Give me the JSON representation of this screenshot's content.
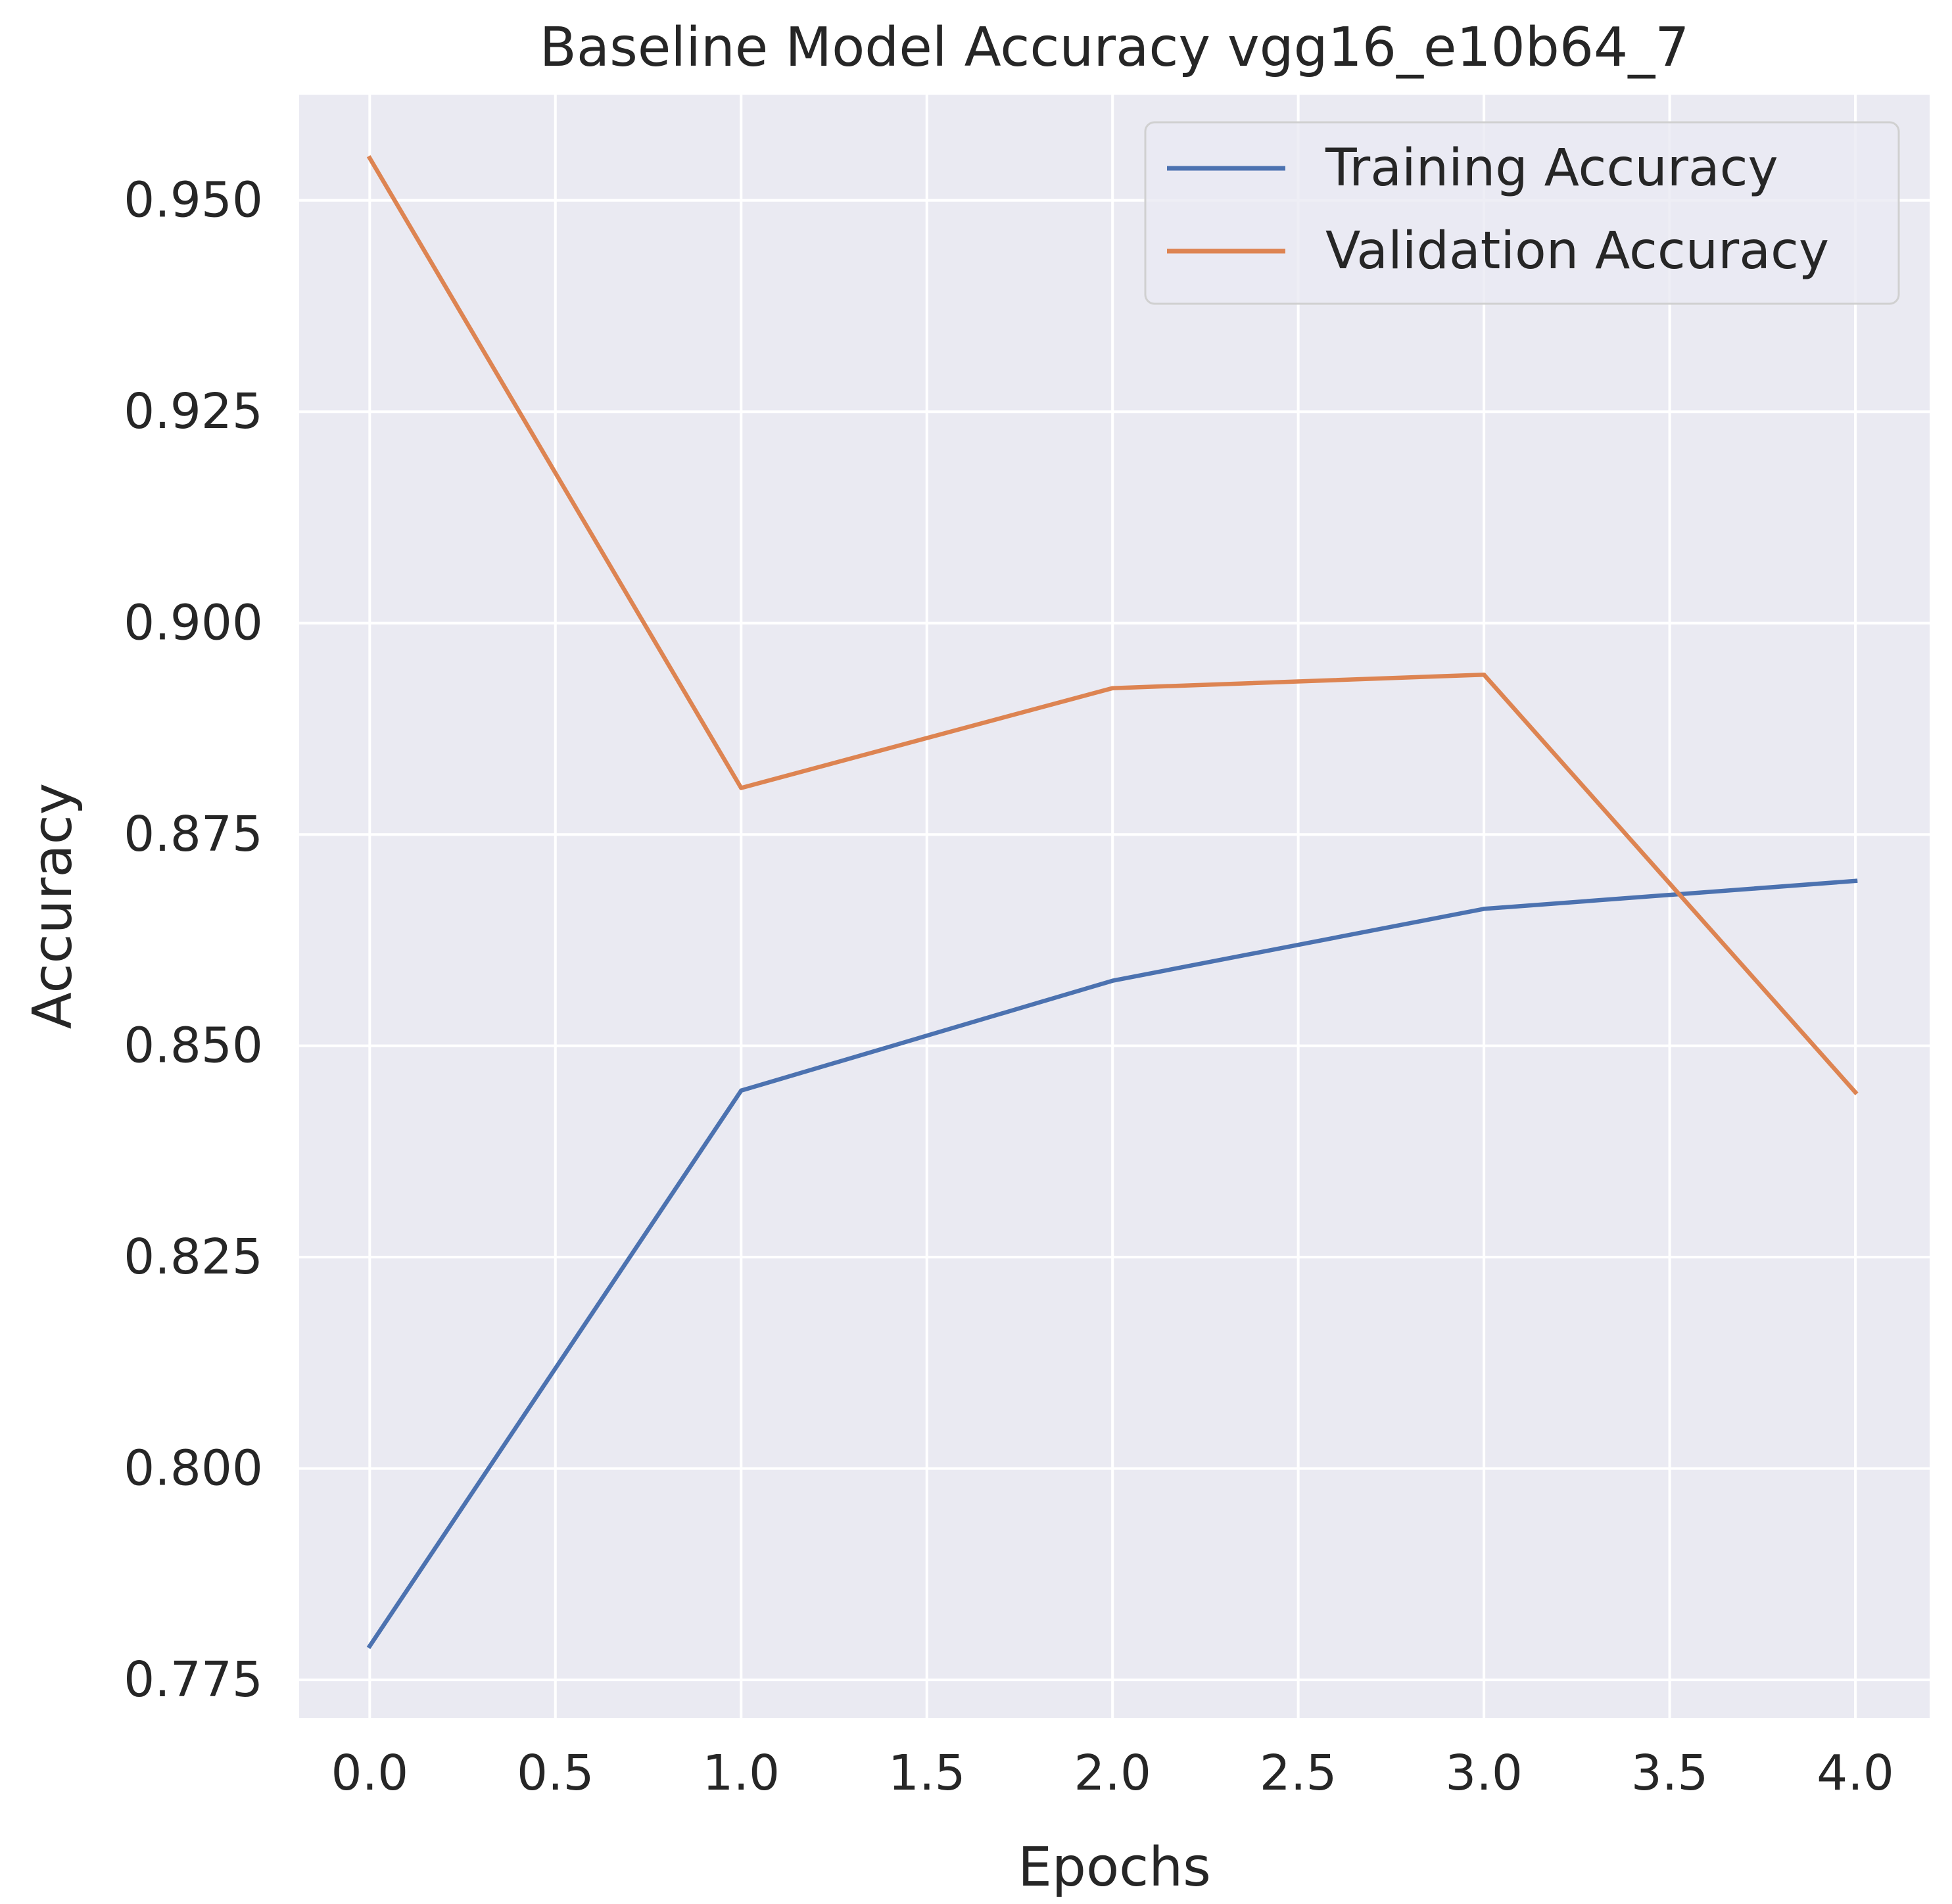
{
  "chart_data": {
    "type": "line",
    "title": "Baseline Model Accuracy vgg16_e10b64_7",
    "xlabel": "Epochs",
    "ylabel": "Accuracy",
    "xlim": [
      -0.19,
      4.2
    ],
    "ylim": [
      0.7705,
      0.9625
    ],
    "xticks": [
      0.0,
      0.5,
      1.0,
      1.5,
      2.0,
      2.5,
      3.0,
      3.5,
      4.0
    ],
    "xtick_labels": [
      "0.0",
      "0.5",
      "1.0",
      "1.5",
      "2.0",
      "2.5",
      "3.0",
      "3.5",
      "4.0"
    ],
    "yticks": [
      0.775,
      0.8,
      0.825,
      0.85,
      0.875,
      0.9,
      0.925,
      0.95
    ],
    "ytick_labels": [
      "0.775",
      "0.800",
      "0.825",
      "0.850",
      "0.875",
      "0.900",
      "0.925",
      "0.950"
    ],
    "grid": true,
    "legend_position": "top-right",
    "x": [
      0,
      1,
      2,
      3,
      4
    ],
    "series": [
      {
        "name": "Training Accuracy",
        "color": "#4c72b0",
        "values": [
          0.779,
          0.8447,
          0.8577,
          0.8662,
          0.8695
        ]
      },
      {
        "name": "Validation Accuracy",
        "color": "#dd8452",
        "values": [
          0.955,
          0.8805,
          0.8923,
          0.8939,
          0.8445
        ]
      }
    ]
  },
  "colors": {
    "plot_background": "#eaeaf2",
    "grid": "#ffffff",
    "text": "#262626"
  }
}
